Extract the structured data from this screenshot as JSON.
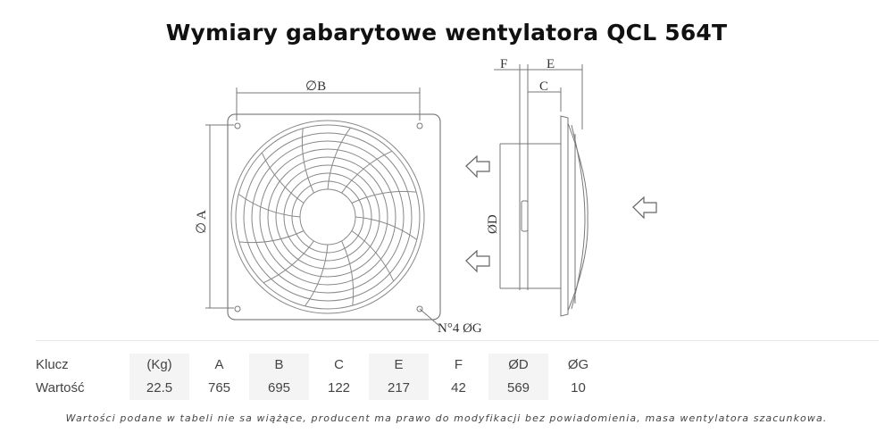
{
  "title": "Wymiary gabarytowe wentylatora QCL 564T",
  "drawing": {
    "front_labels": {
      "b": "∅B",
      "a": "∅ A",
      "holes": "N°4 ØG"
    },
    "side_labels": {
      "f": "F",
      "e": "E",
      "c": "C",
      "d": "ØD"
    },
    "airflow": "left"
  },
  "spec_table": {
    "row_labels": [
      "Klucz",
      "Wartość"
    ],
    "keys": [
      "(Kg)",
      "A",
      "B",
      "C",
      "E",
      "F",
      "ØD",
      "ØG"
    ],
    "values": [
      "22.5",
      "765",
      "695",
      "122",
      "217",
      "42",
      "569",
      "10"
    ]
  },
  "note": "Wartości podane w tabeli nie sa wiążące, producent ma prawo do modyfikacji bez powiadomienia, masa wentylatora szacunkowa."
}
